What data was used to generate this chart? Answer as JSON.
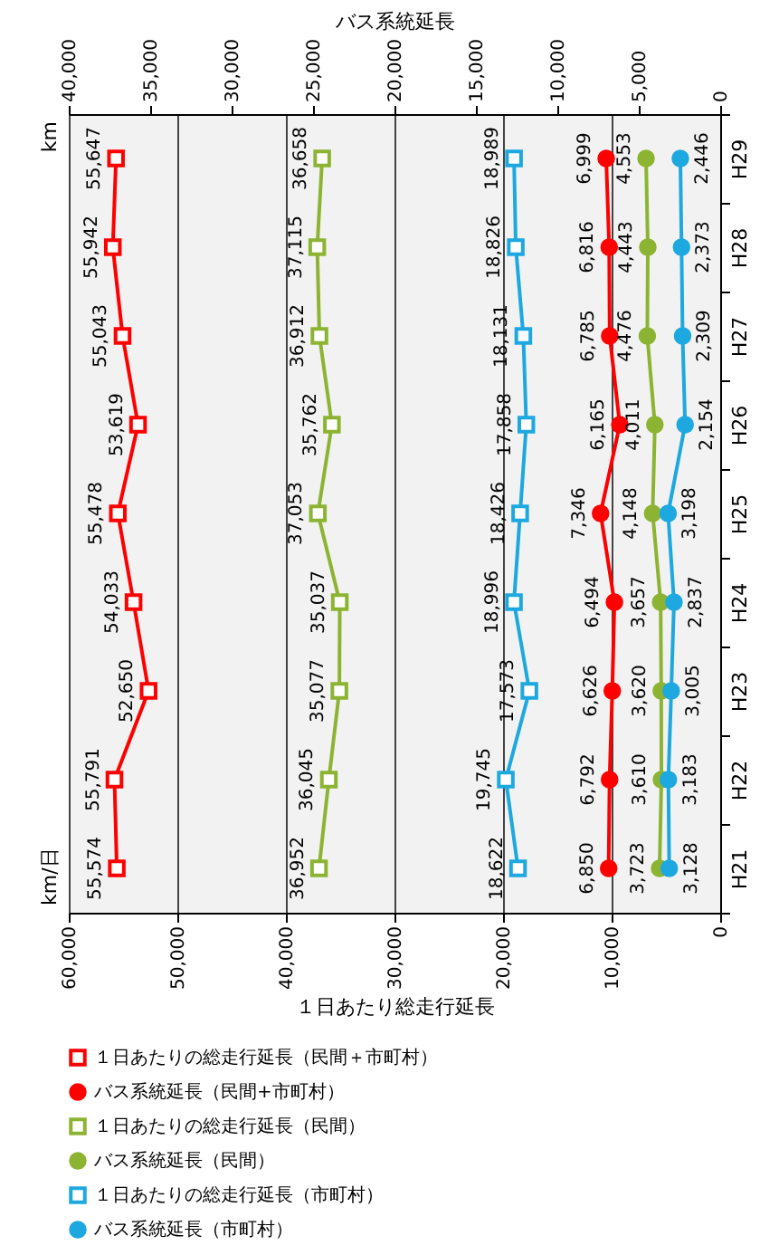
{
  "chart_data": {
    "type": "line",
    "orientation": "horizontal",
    "categories": [
      "H29",
      "H28",
      "H27",
      "H26",
      "H25",
      "H24",
      "H23",
      "H22",
      "H21"
    ],
    "xlabel": "１日あたり総走行延長",
    "x2label": "バス系統延長",
    "annotations": [
      "km/日",
      "km"
    ],
    "xlim": [
      60000,
      0
    ],
    "xticks": [
      {
        "value": 60000,
        "label": "60,000"
      },
      {
        "value": 50000,
        "label": "50,000"
      },
      {
        "value": 40000,
        "label": "40,000"
      },
      {
        "value": 30000,
        "label": "30,000"
      },
      {
        "value": 20000,
        "label": "20,000"
      },
      {
        "value": 10000,
        "label": "10,000"
      },
      0
    ],
    "x2lim": [
      40000,
      0
    ],
    "x2ticks": [
      {
        "value": 40000,
        "label": "40,000"
      },
      {
        "value": 35000,
        "label": "35,000"
      },
      {
        "value": 30000,
        "label": "30,000"
      },
      {
        "value": 25000,
        "label": "25,000"
      },
      {
        "value": 20000,
        "label": "20,000"
      },
      {
        "value": 15000,
        "label": "15,000"
      },
      {
        "value": 10000,
        "label": "10,000"
      },
      {
        "value": 5000,
        "label": "5,000"
      },
      0
    ],
    "grid": "x",
    "legend": "bottom",
    "series": [
      {
        "name": "１日あたりの総走行延長（民間＋市町村）",
        "color": "#ff0000",
        "marker": "square",
        "values": [
          55647,
          55942,
          55043,
          53619,
          55478,
          54033,
          52650,
          55791,
          55574
        ],
        "value_labels": [
          "55,647",
          "55,942",
          "55,043",
          "53,619",
          "55,478",
          "54,033",
          "52,650",
          "55,791",
          "55,574"
        ]
      },
      {
        "name": "バス系統延長（民間+市町村）",
        "color": "#ff0000",
        "marker": "circle",
        "axis": "x2",
        "values": [
          6999,
          6816,
          6785,
          6165,
          7346,
          6494,
          6626,
          6792,
          6850
        ],
        "value_labels": [
          "6,999",
          "6,816",
          "6,785",
          "6,165",
          "7,346",
          "6,494",
          "6,626",
          "6,792",
          "6,850"
        ]
      },
      {
        "name": "１日あたりの総走行延長（民間）",
        "color": "#8cb432",
        "marker": "square",
        "values": [
          36658,
          37115,
          36912,
          35762,
          37053,
          35037,
          35077,
          36045,
          36952
        ],
        "value_labels": [
          "36,658",
          "37,115",
          "36,912",
          "35,762",
          "37,053",
          "35,037",
          "35,077",
          "36,045",
          "36,952"
        ]
      },
      {
        "name": "バス系統延長（民間）",
        "color": "#8cb432",
        "marker": "circle",
        "axis": "x2",
        "values": [
          4553,
          4443,
          4476,
          4011,
          4148,
          3657,
          3620,
          3610,
          3723
        ],
        "value_labels": [
          "4,553",
          "4,443",
          "4,476",
          "4,011",
          "4,148",
          "3,657",
          "3,620",
          "3,610",
          "3,723"
        ]
      },
      {
        "name": "１日あたりの総走行延長（市町村）",
        "color": "#1ea8e0",
        "marker": "square",
        "values": [
          18989,
          18826,
          18131,
          17858,
          18426,
          18996,
          17573,
          19745,
          18622
        ],
        "value_labels": [
          "18,989",
          "18,826",
          "18,131",
          "17,858",
          "18,426",
          "18,996",
          "17,573",
          "19,745",
          "18,622"
        ]
      },
      {
        "name": "バス系統延長（市町村）",
        "color": "#1ea8e0",
        "marker": "circle",
        "axis": "x2",
        "values": [
          2446,
          2373,
          2309,
          2154,
          3198,
          2837,
          3005,
          3183,
          3128
        ],
        "value_labels": [
          "2,446",
          "2,373",
          "2,309",
          "2,154",
          "3,198",
          "2,837",
          "3,005",
          "3,183",
          "3,128"
        ]
      }
    ]
  }
}
